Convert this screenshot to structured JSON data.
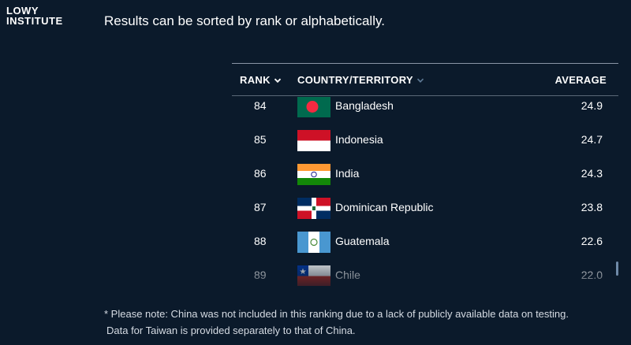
{
  "logo": {
    "line1": "LOWY",
    "line2": "INSTITUTE"
  },
  "intro": "Results can be sorted by rank or alphabetically.",
  "table": {
    "headers": {
      "rank": "RANK",
      "country": "COUNTRY/TERRITORY",
      "average": "AVERAGE"
    },
    "rows": [
      {
        "rank": "84",
        "country": "Bangladesh",
        "average": "24.9",
        "flag": "bangladesh-flag-icon"
      },
      {
        "rank": "85",
        "country": "Indonesia",
        "average": "24.7",
        "flag": "indonesia-flag-icon"
      },
      {
        "rank": "86",
        "country": "India",
        "average": "24.3",
        "flag": "india-flag-icon"
      },
      {
        "rank": "87",
        "country": "Dominican Republic",
        "average": "23.8",
        "flag": "dominican-republic-flag-icon"
      },
      {
        "rank": "88",
        "country": "Guatemala",
        "average": "22.6",
        "flag": "guatemala-flag-icon"
      },
      {
        "rank": "89",
        "country": "Chile",
        "average": "22.0",
        "flag": "chile-flag-icon"
      }
    ]
  },
  "note": {
    "line1": "* Please note: China was not included in this ranking due to a lack of publicly available data on testing.",
    "line2": "Data for Taiwan is provided separately to that of China."
  },
  "colors": {
    "background": "#0b1a2b",
    "text": "#ffffff",
    "muted_chevron": "#5f7a96"
  }
}
